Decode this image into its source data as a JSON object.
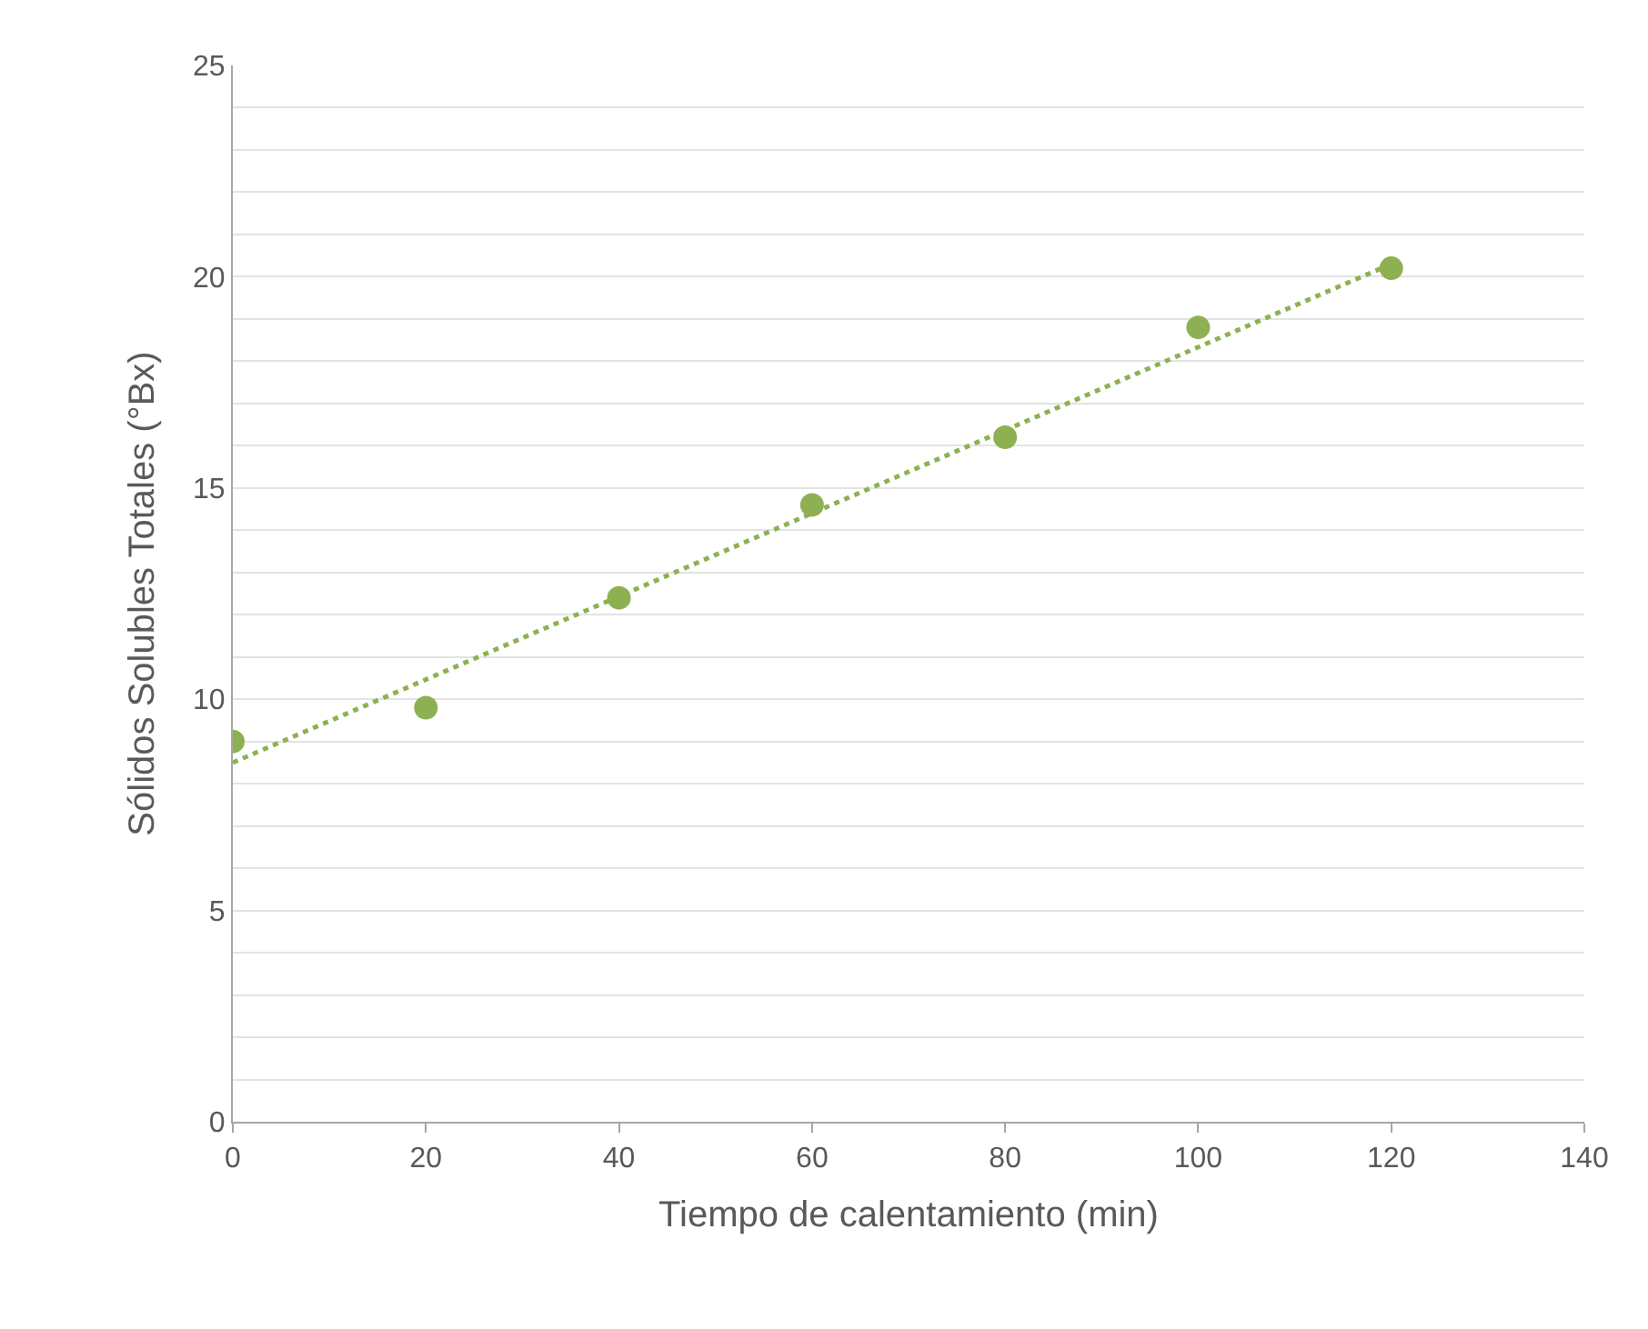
{
  "chart_data": {
    "type": "scatter",
    "xlabel": "Tiempo de calentamiento (min)",
    "ylabel": "Sólidos Solubles Totales (°Bx)",
    "x": [
      0,
      20,
      40,
      60,
      80,
      100,
      120
    ],
    "series": [
      {
        "color": "#8db152",
        "values": [
          9.0,
          9.8,
          12.4,
          14.6,
          16.2,
          18.8,
          20.2
        ],
        "marker": "circle"
      },
      {
        "type": "line",
        "color": "#8db152",
        "x": [
          0,
          120
        ],
        "values": [
          8.5,
          20.3
        ],
        "line_style": "dotted",
        "marker": "none"
      }
    ],
    "xlim": [
      0,
      140
    ],
    "xticks": [
      0,
      20,
      40,
      60,
      80,
      100,
      120,
      140
    ],
    "ylim": [
      0,
      25
    ],
    "yticks": [
      0,
      {
        "value": 1,
        "label": null
      },
      {
        "value": 2,
        "label": null
      },
      {
        "value": 3,
        "label": null
      },
      {
        "value": 4,
        "label": null
      },
      5,
      {
        "value": 6,
        "label": null
      },
      {
        "value": 7,
        "label": null
      },
      {
        "value": 8,
        "label": null
      },
      {
        "value": 9,
        "label": null
      },
      10,
      {
        "value": 11,
        "label": null
      },
      {
        "value": 12,
        "label": null
      },
      {
        "value": 13,
        "label": null
      },
      {
        "value": 14,
        "label": null
      },
      15,
      {
        "value": 16,
        "label": null
      },
      {
        "value": 17,
        "label": null
      },
      {
        "value": 18,
        "label": null
      },
      {
        "value": 19,
        "label": null
      },
      20,
      {
        "value": 21,
        "label": null
      },
      {
        "value": 22,
        "label": null
      },
      {
        "value": 23,
        "label": null
      },
      {
        "value": 24,
        "label": null
      },
      25
    ],
    "grid": "y"
  }
}
